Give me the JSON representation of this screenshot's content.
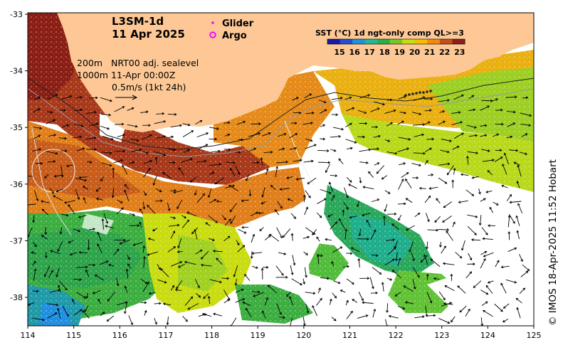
{
  "title": {
    "product": "L3SM-1d",
    "date": "11 Apr 2025"
  },
  "legend": {
    "glider": "Glider",
    "argo": "Argo",
    "glider_color": "#ff00ff",
    "argo_color": "#ff00ff"
  },
  "annotations": {
    "depth1": "200m",
    "depth2": "1000m",
    "sealevel": "NRT00 adj. sealevel",
    "time": "11-Apr 00:00Z",
    "scale": "0.5m/s (1kt 24h)"
  },
  "colorbar": {
    "title": "SST (°C) 1d ngt-only comp QL>=3",
    "labels": [
      "15",
      "16",
      "17",
      "18",
      "19",
      "20",
      "21",
      "22",
      "23"
    ],
    "colors": [
      "#1a1aa8",
      "#1e50d0",
      "#1f8fe0",
      "#1fb89a",
      "#26b04a",
      "#74c82a",
      "#c8dc10",
      "#f0c000",
      "#f08a10",
      "#c0501c",
      "#8c1e1e"
    ]
  },
  "axes": {
    "x_ticks": [
      "114",
      "115",
      "116",
      "117",
      "118",
      "119",
      "120",
      "121",
      "122",
      "123",
      "124",
      "125"
    ],
    "y_ticks": [
      "-33",
      "-34",
      "-35",
      "-36",
      "-37",
      "-38"
    ]
  },
  "credit": "© IMOS 18-Apr-2025 11:52 Hobart",
  "colors": {
    "land": "#fdc896",
    "no_data": "#ffffff"
  }
}
